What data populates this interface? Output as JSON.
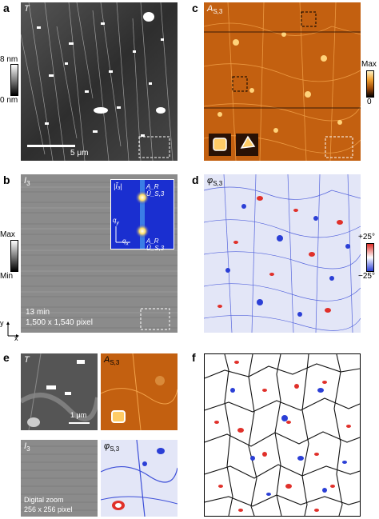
{
  "panels": {
    "a": {
      "letter": "a",
      "symbol": "T",
      "scale_top": "8 nm",
      "scale_bottom": "0 nm",
      "scalebar": "5 μm"
    },
    "b": {
      "letter": "b",
      "symbol": "I",
      "symbol_sub": "3",
      "scale_top": "Max",
      "scale_bottom": "Min",
      "caption_time": "13 min",
      "caption_pixels": "1,500 x 1,540 pixel",
      "inset_label_1": "|Ĩ₃|",
      "inset_label_2": "A_R Ũ_S,3",
      "inset_label_3": "A_R Ũ_S,3",
      "axis_y": "q",
      "axis_y_sub": "y",
      "axis_x": "q",
      "axis_x_sub": "x",
      "frame_y": "y",
      "frame_x": "x"
    },
    "c": {
      "letter": "c",
      "symbol": "A",
      "symbol_sub": "S,3",
      "scale_top": "Max",
      "scale_bottom": "0"
    },
    "d": {
      "letter": "d",
      "symbol": "φ",
      "symbol_sub": "S,3",
      "scale_top": "+25°",
      "scale_bottom": "−25°"
    },
    "e": {
      "letter": "e",
      "sym_tl": "T",
      "sym_tr": "A",
      "sym_tr_sub": "S,3",
      "sym_bl": "I",
      "sym_bl_sub": "3",
      "sym_br": "φ",
      "sym_br_sub": "S,3",
      "scalebar": "1 μm",
      "zoom_line1": "Digital zoom",
      "zoom_line2": "256 x 256 pixel"
    },
    "f": {
      "letter": "f"
    }
  },
  "colors": {
    "afm_gray": "#3a3a3a",
    "amplitude_orange": "#c8650f",
    "phase_blue": "#2b3fd6",
    "phase_red": "#e0302a"
  }
}
